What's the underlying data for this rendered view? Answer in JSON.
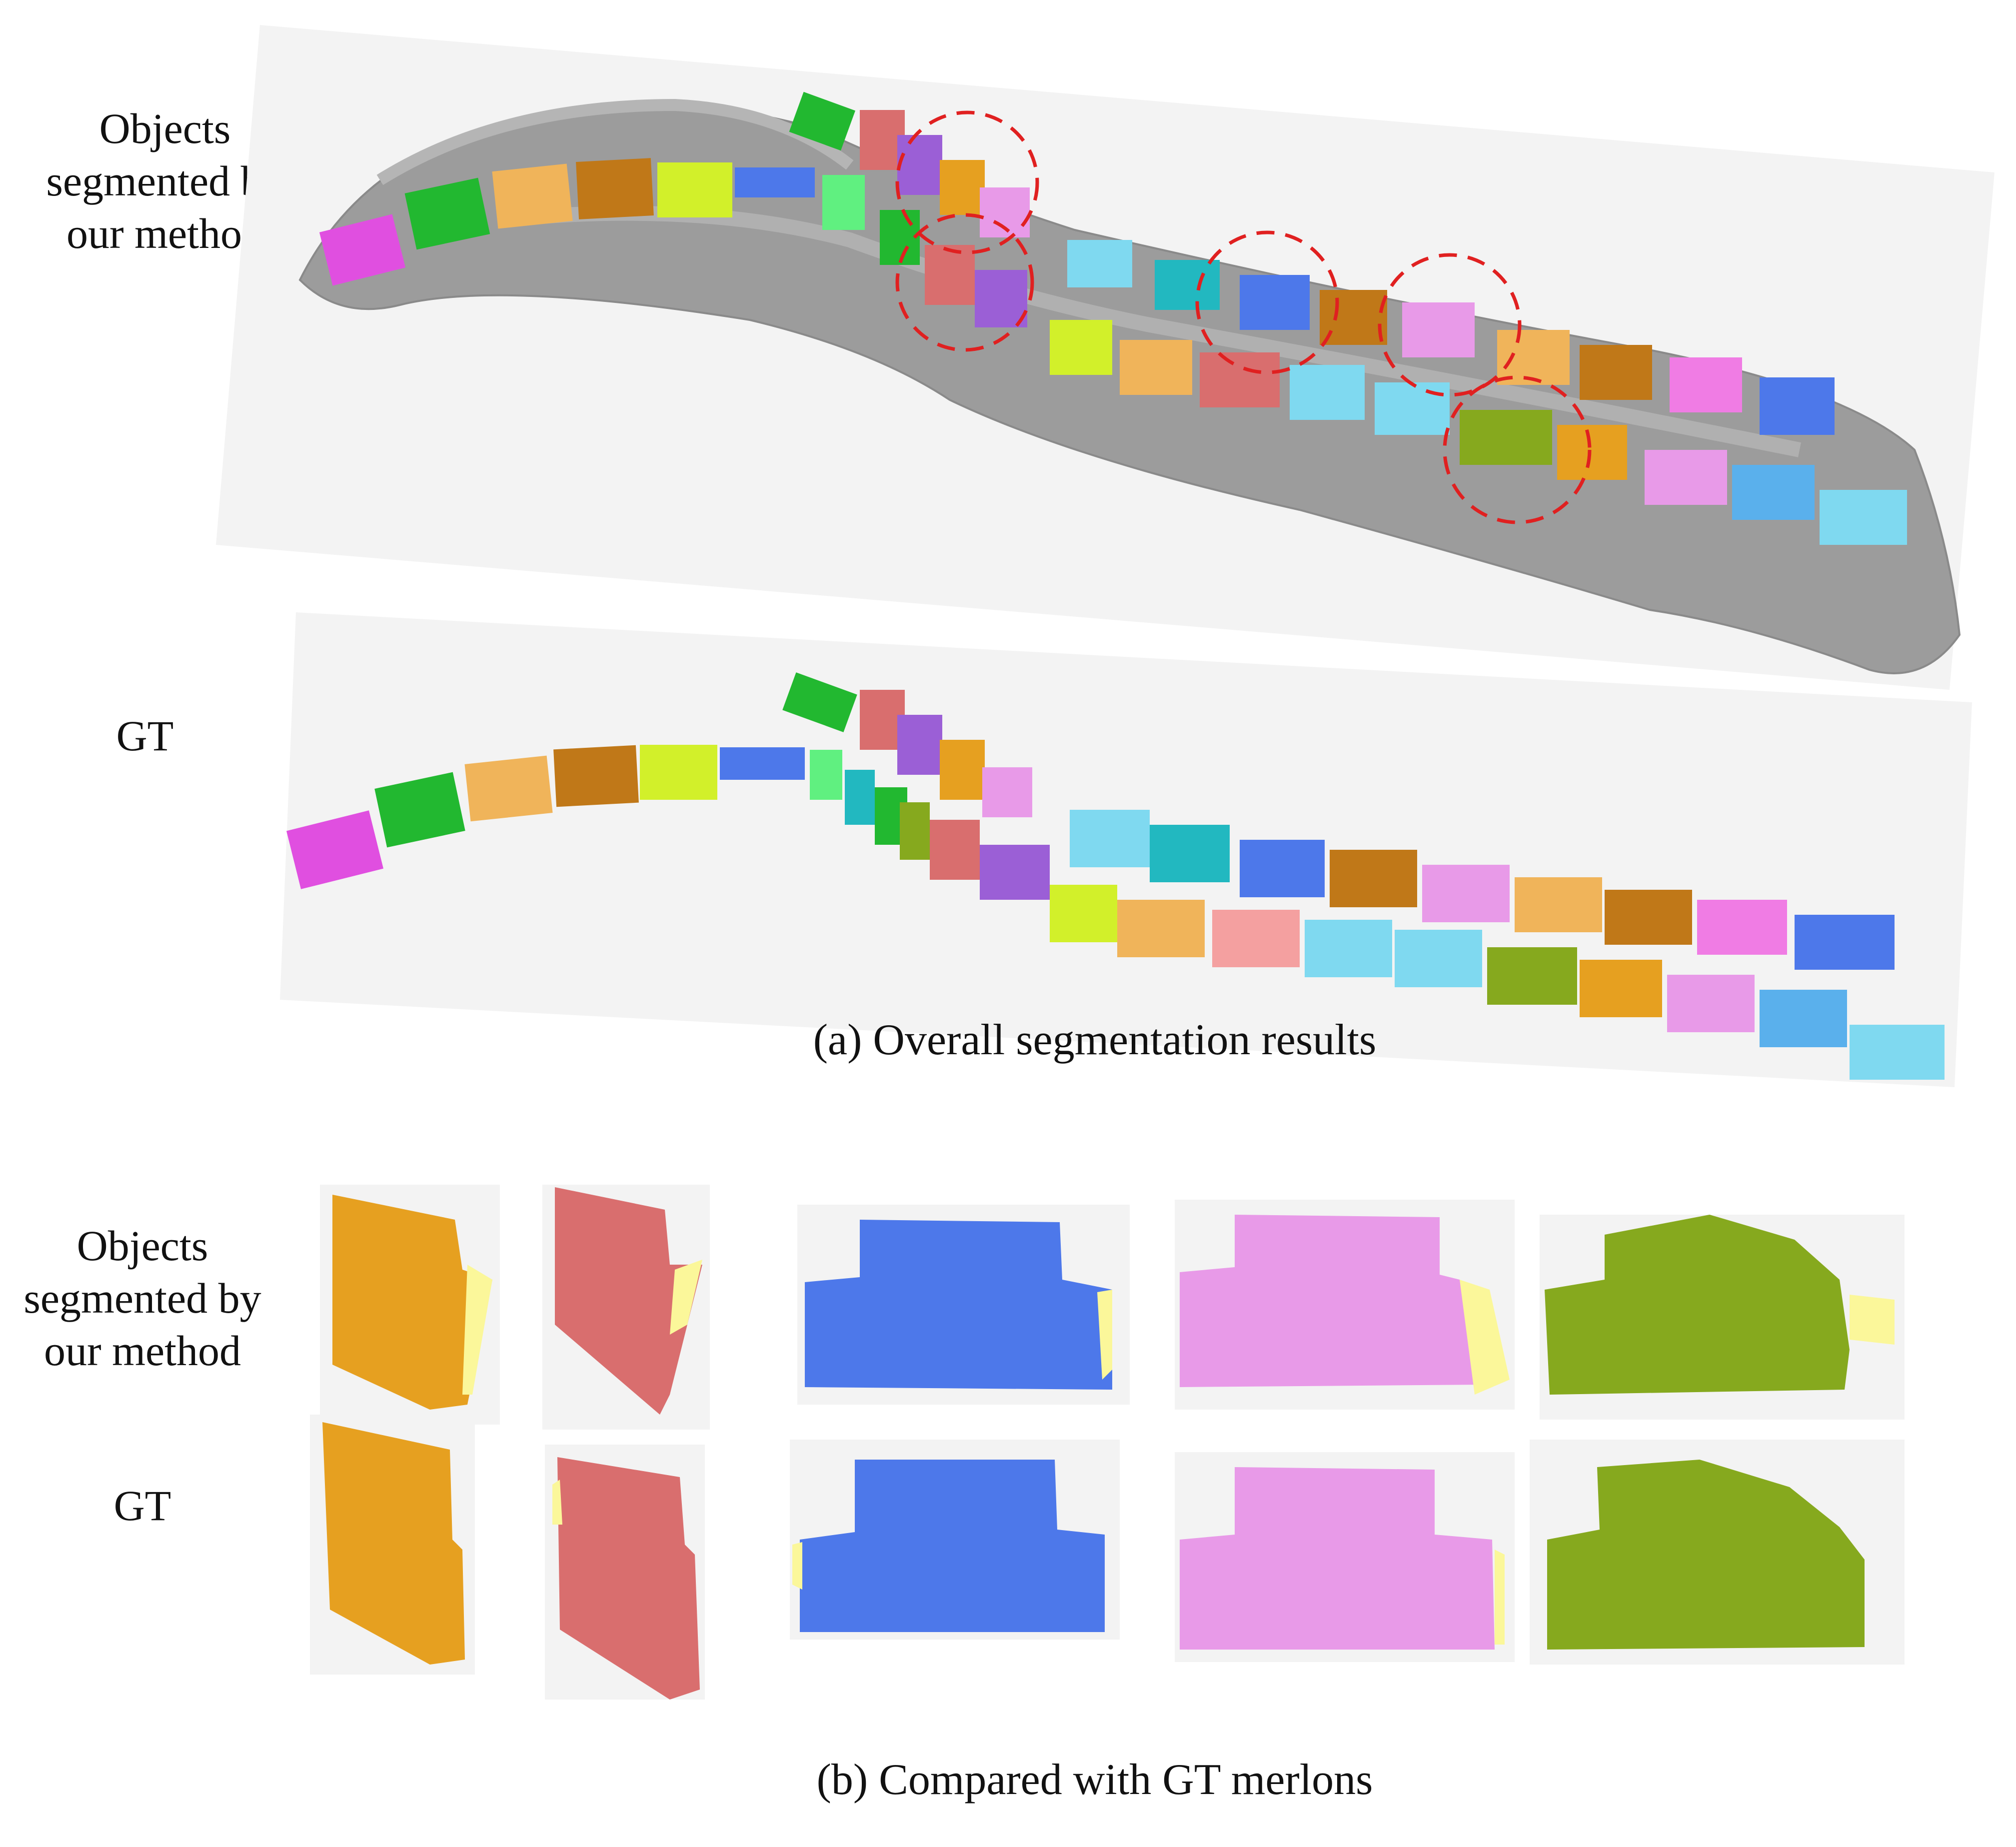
{
  "figure": {
    "part_a": {
      "row_labels": {
        "ours": "Objects\nsegmented by\nour method",
        "gt": "GT"
      },
      "caption": "(a)  Overall segmentation results",
      "highlight_color": "#e02020"
    },
    "part_b": {
      "row_labels": {
        "ours": "Objects\nsegmented by\nour method",
        "gt": "GT"
      },
      "caption": "(b) Compared with GT merlons"
    }
  },
  "colors": {
    "panel_bg": "#f3f3f3",
    "wall_gray": "#9c9c9c",
    "residual_yellow": "#fbf79a",
    "merlon_palette": [
      "#e04fe0",
      "#22b830",
      "#f0b45a",
      "#c07818",
      "#d2f02a",
      "#4d78ea",
      "#60f080",
      "#d96e6e",
      "#9b5fd6",
      "#e6a020",
      "#e89ae8",
      "#7fd9f0",
      "#22b8c0",
      "#86a91e",
      "#f07ce4",
      "#5ab0ec",
      "#f4a0a0"
    ]
  }
}
